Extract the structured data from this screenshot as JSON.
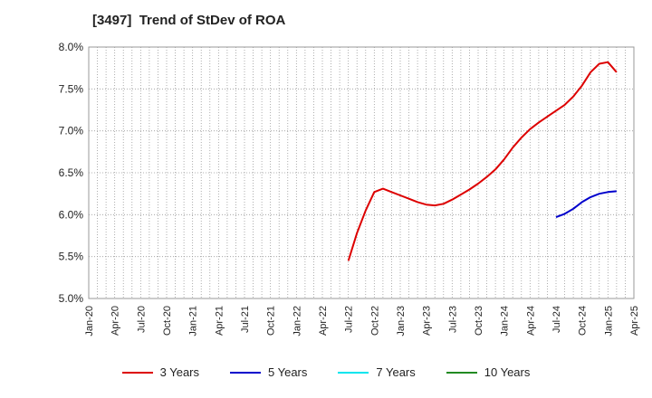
{
  "chart_data": {
    "type": "line",
    "title": "[3497]  Trend of StDev of ROA",
    "xlabel": "",
    "ylabel": "",
    "y_ticks": [
      "5.0%",
      "5.5%",
      "6.0%",
      "6.5%",
      "7.0%",
      "7.5%",
      "8.0%"
    ],
    "y_tick_values": [
      5.0,
      5.5,
      6.0,
      6.5,
      7.0,
      7.5,
      8.0
    ],
    "ylim": [
      5.0,
      8.0
    ],
    "x_ticks": [
      "Jan-20",
      "Apr-20",
      "Jul-20",
      "Oct-20",
      "Jan-21",
      "Apr-21",
      "Jul-21",
      "Oct-21",
      "Jan-22",
      "Apr-22",
      "Jul-22",
      "Oct-22",
      "Jan-23",
      "Apr-23",
      "Jul-23",
      "Oct-23",
      "Jan-24",
      "Apr-24",
      "Jul-24",
      "Oct-24",
      "Jan-25",
      "Apr-25"
    ],
    "x_range_months": [
      0,
      63
    ],
    "grid": true,
    "legend_position": "bottom",
    "series": [
      {
        "name": "3 Years",
        "color": "#dd0000",
        "x_months": [
          30,
          31,
          32,
          33,
          34,
          35,
          36,
          37,
          38,
          39,
          40,
          41,
          42,
          43,
          44,
          45,
          46,
          47,
          48,
          49,
          50,
          51,
          52,
          53,
          54,
          55,
          56,
          57,
          58,
          59,
          60,
          61,
          62
        ],
        "values": [
          5.45,
          5.78,
          6.05,
          6.27,
          6.31,
          6.27,
          6.23,
          6.19,
          6.15,
          6.12,
          6.11,
          6.13,
          6.18,
          6.24,
          6.3,
          6.37,
          6.45,
          6.54,
          6.66,
          6.8,
          6.92,
          7.02,
          7.1,
          7.17,
          7.24,
          7.31,
          7.41,
          7.54,
          7.7,
          7.8,
          7.82,
          7.7,
          null
        ]
      },
      {
        "name": "5 Years",
        "color": "#0000cc",
        "x_months": [
          54,
          55,
          56,
          57,
          58,
          59,
          60,
          61
        ],
        "values": [
          5.97,
          6.01,
          6.07,
          6.15,
          6.21,
          6.25,
          6.27,
          6.28
        ]
      },
      {
        "name": "7 Years",
        "color": "#00e5ee",
        "x_months": [],
        "values": []
      },
      {
        "name": "10 Years",
        "color": "#228b22",
        "x_months": [],
        "values": []
      }
    ]
  }
}
